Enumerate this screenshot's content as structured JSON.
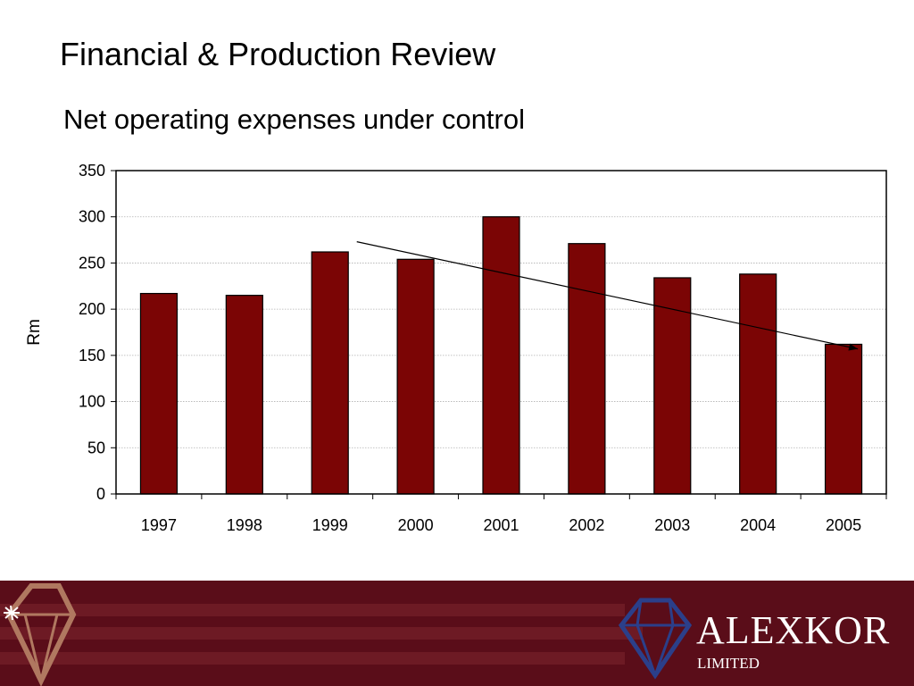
{
  "slide": {
    "title": "Financial & Production Review",
    "subtitle": "Net operating expenses under control"
  },
  "chart_data": {
    "type": "bar",
    "categories": [
      "1997",
      "1998",
      "1999",
      "2000",
      "2001",
      "2002",
      "2003",
      "2004",
      "2005"
    ],
    "values": [
      217,
      215,
      262,
      254,
      300,
      271,
      234,
      238,
      162
    ],
    "title": "",
    "xlabel": "",
    "ylabel": "Rm",
    "ylim": [
      0,
      350
    ],
    "yticks": [
      0,
      50,
      100,
      150,
      200,
      250,
      300,
      350
    ],
    "grid": true,
    "legend": "none",
    "trend_arrow": {
      "from": {
        "x": "1999",
        "y": 273
      },
      "to": {
        "x": "2005",
        "y": 157
      }
    },
    "colors": {
      "bar": "#7b0505",
      "bar_stroke": "#000000",
      "grid": "#b0b0b0"
    }
  },
  "footer": {
    "brand_name": "ALEXKOR",
    "brand_sub": "LIMITED",
    "logo_icon": "diamond-logo-icon",
    "colors": {
      "band": "#5a0d19",
      "stripe": "#6d1a24",
      "logo_left": "#b07860",
      "logo_right": "#2b3f8a"
    }
  }
}
